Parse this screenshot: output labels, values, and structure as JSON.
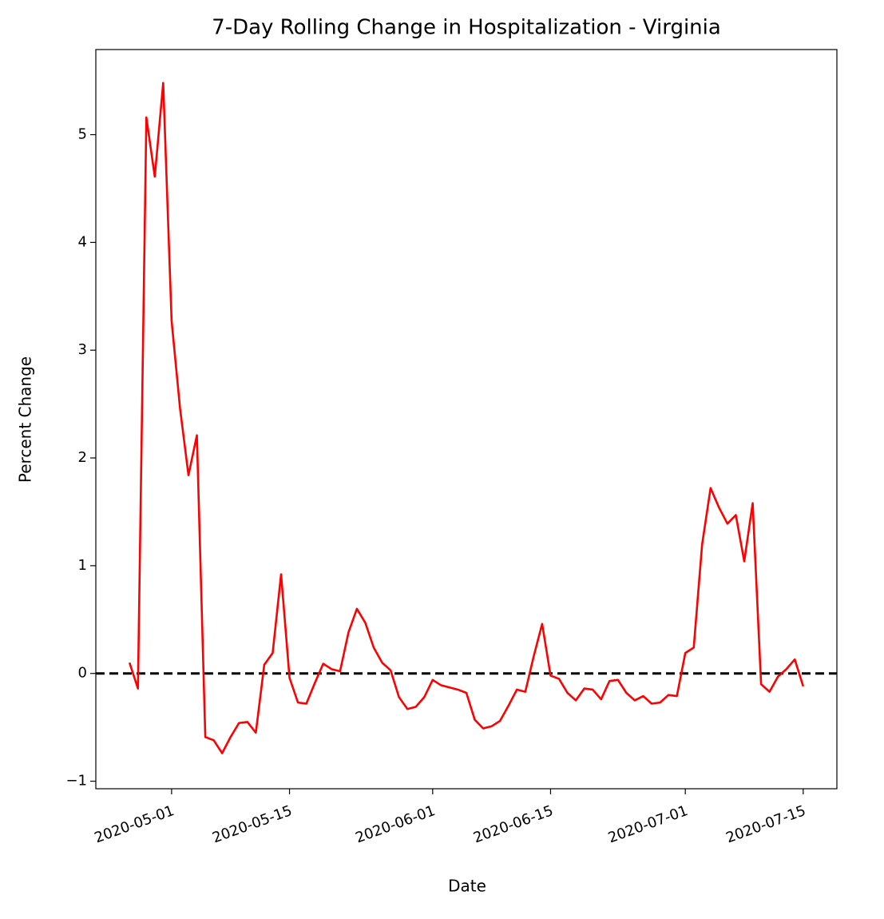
{
  "chart_data": {
    "type": "line",
    "title": "7-Day Rolling Change in Hospitalization - Virginia",
    "xlabel": "Date",
    "ylabel": "Percent Change",
    "x": [
      "2020-04-26",
      "2020-04-27",
      "2020-04-28",
      "2020-04-29",
      "2020-04-30",
      "2020-05-01",
      "2020-05-02",
      "2020-05-03",
      "2020-05-04",
      "2020-05-05",
      "2020-05-06",
      "2020-05-07",
      "2020-05-08",
      "2020-05-09",
      "2020-05-10",
      "2020-05-11",
      "2020-05-12",
      "2020-05-13",
      "2020-05-14",
      "2020-05-15",
      "2020-05-16",
      "2020-05-17",
      "2020-05-18",
      "2020-05-19",
      "2020-05-20",
      "2020-05-21",
      "2020-05-22",
      "2020-05-23",
      "2020-05-24",
      "2020-05-25",
      "2020-05-26",
      "2020-05-27",
      "2020-05-28",
      "2020-05-29",
      "2020-05-30",
      "2020-05-31",
      "2020-06-01",
      "2020-06-02",
      "2020-06-03",
      "2020-06-04",
      "2020-06-05",
      "2020-06-06",
      "2020-06-07",
      "2020-06-08",
      "2020-06-09",
      "2020-06-10",
      "2020-06-11",
      "2020-06-12",
      "2020-06-13",
      "2020-06-14",
      "2020-06-15",
      "2020-06-16",
      "2020-06-17",
      "2020-06-18",
      "2020-06-19",
      "2020-06-20",
      "2020-06-21",
      "2020-06-22",
      "2020-06-23",
      "2020-06-24",
      "2020-06-25",
      "2020-06-26",
      "2020-06-27",
      "2020-06-28",
      "2020-06-29",
      "2020-06-30",
      "2020-07-01",
      "2020-07-02",
      "2020-07-03",
      "2020-07-04",
      "2020-07-05",
      "2020-07-06",
      "2020-07-07",
      "2020-07-08",
      "2020-07-09",
      "2020-07-10",
      "2020-07-11",
      "2020-07-12",
      "2020-07-13",
      "2020-07-14",
      "2020-07-15"
    ],
    "series": [
      {
        "color": "#ff0000",
        "values": [
          0.1,
          -0.14,
          5.16,
          4.61,
          5.48,
          3.27,
          2.46,
          1.84,
          2.21,
          -0.59,
          -0.62,
          -0.74,
          -0.59,
          -0.46,
          -0.45,
          -0.55,
          0.08,
          0.19,
          0.92,
          -0.04,
          -0.27,
          -0.28,
          -0.09,
          0.09,
          0.04,
          0.02,
          0.38,
          0.6,
          0.47,
          0.24,
          0.1,
          0.03,
          -0.22,
          -0.33,
          -0.31,
          -0.22,
          -0.06,
          -0.11,
          -0.13,
          -0.15,
          -0.18,
          -0.43,
          -0.51,
          -0.49,
          -0.44,
          -0.3,
          -0.15,
          -0.17,
          0.16,
          0.46,
          -0.02,
          -0.05,
          -0.18,
          -0.25,
          -0.14,
          -0.15,
          -0.24,
          -0.07,
          -0.06,
          -0.18,
          -0.25,
          -0.21,
          -0.28,
          -0.27,
          -0.2,
          -0.21,
          0.19,
          0.24,
          1.2,
          1.72,
          1.54,
          1.39,
          1.47,
          1.04,
          1.58,
          -0.1,
          -0.17,
          -0.03,
          0.04,
          0.13,
          -0.12
        ]
      }
    ],
    "xlim": [
      "2020-04-22",
      "2020-07-19"
    ],
    "xticks": [
      "2020-05-01",
      "2020-05-15",
      "2020-06-01",
      "2020-06-15",
      "2020-07-01",
      "2020-07-15"
    ],
    "ylim": [
      -1.07,
      5.79
    ],
    "yticks": [
      {
        "value": -1,
        "label": "−1"
      },
      0,
      1,
      2,
      3,
      4,
      5
    ],
    "hline": {
      "value": 0,
      "color": "#000000"
    }
  }
}
